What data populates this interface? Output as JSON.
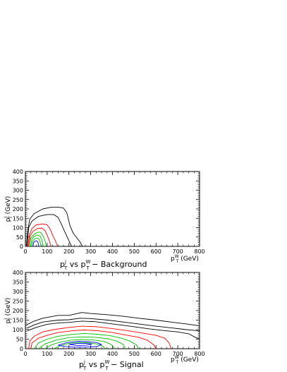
{
  "chart_data": [
    {
      "type": "contour",
      "title": "p_T^j vs p_T^W − Background",
      "title_parts": {
        "a": "p",
        "a_sub": "T",
        "a_sup": "j",
        "mid": " vs p",
        "b_sub": "T",
        "b_sup": "W",
        "tail": " − Background"
      },
      "xlabel_parts": {
        "main": "p",
        "sub": "T",
        "sup": "W",
        "unit": " (GeV)"
      },
      "ylabel_parts": {
        "main": "p",
        "sub": "T",
        "sup": "j",
        "unit": " (GeV)"
      },
      "xlim": [
        0,
        800
      ],
      "ylim": [
        0,
        400
      ],
      "xticks": [
        "0",
        "100",
        "200",
        "300",
        "400",
        "500",
        "600",
        "700",
        "800"
      ],
      "yticks": [
        "0",
        "50",
        "100",
        "150",
        "200",
        "250",
        "300",
        "350",
        "400"
      ],
      "contours": [
        {
          "color": "#000000",
          "points": [
            [
              5,
              0
            ],
            [
              10,
              80
            ],
            [
              20,
              145
            ],
            [
              40,
              175
            ],
            [
              80,
              200
            ],
            [
              120,
              210
            ],
            [
              150,
              210
            ],
            [
              175,
              205
            ],
            [
              190,
              180
            ],
            [
              205,
              110
            ],
            [
              220,
              70
            ],
            [
              250,
              25
            ],
            [
              262,
              0
            ]
          ]
        },
        {
          "color": "#000000",
          "points": [
            [
              8,
              0
            ],
            [
              15,
              100
            ],
            [
              30,
              135
            ],
            [
              60,
              160
            ],
            [
              100,
              170
            ],
            [
              130,
              170
            ],
            [
              150,
              155
            ],
            [
              165,
              120
            ],
            [
              180,
              80
            ],
            [
              200,
              30
            ],
            [
              212,
              0
            ]
          ]
        },
        {
          "color": "#ff0000",
          "points": [
            [
              12,
              0
            ],
            [
              18,
              60
            ],
            [
              30,
              95
            ],
            [
              50,
              115
            ],
            [
              80,
              120
            ],
            [
              100,
              115
            ],
            [
              115,
              90
            ],
            [
              125,
              60
            ],
            [
              140,
              25
            ],
            [
              148,
              0
            ]
          ]
        },
        {
          "color": "#ff0000",
          "points": [
            [
              15,
              0
            ],
            [
              22,
              55
            ],
            [
              35,
              80
            ],
            [
              55,
              95
            ],
            [
              75,
              98
            ],
            [
              90,
              85
            ],
            [
              100,
              60
            ],
            [
              110,
              30
            ],
            [
              118,
              0
            ]
          ]
        },
        {
          "color": "#00c000",
          "points": [
            [
              20,
              0
            ],
            [
              25,
              45
            ],
            [
              40,
              65
            ],
            [
              55,
              75
            ],
            [
              70,
              75
            ],
            [
              82,
              55
            ],
            [
              90,
              30
            ],
            [
              96,
              0
            ]
          ]
        },
        {
          "color": "#00c000",
          "points": [
            [
              25,
              0
            ],
            [
              30,
              40
            ],
            [
              42,
              55
            ],
            [
              55,
              60
            ],
            [
              68,
              55
            ],
            [
              75,
              35
            ],
            [
              82,
              0
            ]
          ]
        },
        {
          "color": "#00c000",
          "points": [
            [
              30,
              0
            ],
            [
              35,
              30
            ],
            [
              45,
              42
            ],
            [
              55,
              45
            ],
            [
              63,
              38
            ],
            [
              68,
              20
            ],
            [
              72,
              0
            ]
          ]
        },
        {
          "color": "#0000ff",
          "points": [
            [
              35,
              0
            ],
            [
              38,
              20
            ],
            [
              45,
              28
            ],
            [
              53,
              30
            ],
            [
              58,
              20
            ],
            [
              62,
              0
            ]
          ]
        }
      ]
    },
    {
      "type": "contour",
      "title": "p_T^j vs p_T^W − Signal",
      "title_parts": {
        "a": "p",
        "a_sub": "T",
        "a_sup": "j",
        "mid": " vs p",
        "b_sub": "T",
        "b_sup": "W",
        "tail": " − Signal"
      },
      "xlabel_parts": {
        "main": "p",
        "sub": "T",
        "sup": "W",
        "unit": " (GeV)"
      },
      "ylabel_parts": {
        "main": "p",
        "sub": "T",
        "sup": "j",
        "unit": " (GeV)"
      },
      "xlim": [
        0,
        800
      ],
      "ylim": [
        0,
        400
      ],
      "xticks": [
        "0",
        "100",
        "200",
        "300",
        "400",
        "500",
        "600",
        "700",
        "800"
      ],
      "yticks": [
        "0",
        "50",
        "100",
        "150",
        "200",
        "250",
        "300",
        "350",
        "400"
      ],
      "contours": [
        {
          "color": "#000000",
          "points": [
            [
              5,
              125
            ],
            [
              40,
              145
            ],
            [
              80,
              160
            ],
            [
              150,
              175
            ],
            [
              200,
              175
            ],
            [
              260,
              190
            ],
            [
              300,
              185
            ],
            [
              380,
              178
            ],
            [
              450,
              170
            ],
            [
              520,
              160
            ],
            [
              600,
              150
            ],
            [
              680,
              138
            ],
            [
              740,
              130
            ],
            [
              790,
              122
            ],
            [
              800,
              118
            ]
          ]
        },
        {
          "color": "#000000",
          "points": [
            [
              8,
              108
            ],
            [
              40,
              125
            ],
            [
              80,
              140
            ],
            [
              150,
              150
            ],
            [
              200,
              152
            ],
            [
              250,
              160
            ],
            [
              300,
              158
            ],
            [
              380,
              150
            ],
            [
              450,
              140
            ],
            [
              520,
              130
            ],
            [
              600,
              118
            ],
            [
              680,
              108
            ],
            [
              740,
              100
            ],
            [
              790,
              95
            ],
            [
              800,
              92
            ]
          ]
        },
        {
          "color": "#000000",
          "points": [
            [
              10,
              95
            ],
            [
              50,
              112
            ],
            [
              100,
              128
            ],
            [
              150,
              135
            ],
            [
              200,
              138
            ],
            [
              260,
              145
            ],
            [
              320,
              142
            ],
            [
              400,
              130
            ],
            [
              480,
              118
            ],
            [
              560,
              105
            ],
            [
              640,
              95
            ],
            [
              700,
              88
            ],
            [
              750,
              78
            ],
            [
              780,
              60
            ],
            [
              800,
              50
            ]
          ]
        },
        {
          "color": "#ff0000",
          "points": [
            [
              15,
              0
            ],
            [
              20,
              40
            ],
            [
              40,
              65
            ],
            [
              80,
              88
            ],
            [
              130,
              100
            ],
            [
              200,
              112
            ],
            [
              260,
              118
            ],
            [
              330,
              115
            ],
            [
              400,
              105
            ],
            [
              470,
              95
            ],
            [
              540,
              82
            ],
            [
              600,
              70
            ],
            [
              640,
              55
            ],
            [
              660,
              30
            ],
            [
              670,
              0
            ]
          ]
        },
        {
          "color": "#ff0000",
          "points": [
            [
              25,
              0
            ],
            [
              30,
              30
            ],
            [
              60,
              55
            ],
            [
              100,
              70
            ],
            [
              150,
              85
            ],
            [
              220,
              95
            ],
            [
              270,
              98
            ],
            [
              330,
              95
            ],
            [
              400,
              85
            ],
            [
              460,
              72
            ],
            [
              520,
              60
            ],
            [
              560,
              45
            ],
            [
              590,
              20
            ],
            [
              600,
              0
            ]
          ]
        },
        {
          "color": "#00c000",
          "points": [
            [
              40,
              0
            ],
            [
              60,
              30
            ],
            [
              100,
              50
            ],
            [
              150,
              65
            ],
            [
              210,
              75
            ],
            [
              270,
              80
            ],
            [
              330,
              76
            ],
            [
              390,
              68
            ],
            [
              440,
              55
            ],
            [
              480,
              40
            ],
            [
              510,
              20
            ],
            [
              520,
              0
            ]
          ]
        },
        {
          "color": "#00c000",
          "points": [
            [
              60,
              0
            ],
            [
              90,
              25
            ],
            [
              140,
              45
            ],
            [
              200,
              58
            ],
            [
              260,
              62
            ],
            [
              320,
              60
            ],
            [
              380,
              52
            ],
            [
              420,
              40
            ],
            [
              450,
              22
            ],
            [
              460,
              0
            ]
          ]
        },
        {
          "color": "#00c000",
          "points": [
            [
              90,
              0
            ],
            [
              120,
              20
            ],
            [
              160,
              35
            ],
            [
              210,
              45
            ],
            [
              260,
              48
            ],
            [
              310,
              46
            ],
            [
              360,
              38
            ],
            [
              390,
              25
            ],
            [
              405,
              10
            ],
            [
              410,
              0
            ]
          ]
        },
        {
          "color": "#00c000",
          "points": [
            [
              130,
              0
            ],
            [
              160,
              15
            ],
            [
              200,
              28
            ],
            [
              250,
              33
            ],
            [
              300,
              30
            ],
            [
              340,
              22
            ],
            [
              360,
              10
            ],
            [
              365,
              0
            ]
          ]
        },
        {
          "color": "#0000ff",
          "points": [
            [
              150,
              18
            ],
            [
              190,
              32
            ],
            [
              240,
              38
            ],
            [
              290,
              37
            ],
            [
              330,
              32
            ],
            [
              350,
              22
            ],
            [
              330,
              12
            ],
            [
              280,
              8
            ],
            [
              220,
              8
            ],
            [
              180,
              12
            ],
            [
              150,
              18
            ]
          ]
        },
        {
          "color": "#0000ff",
          "points": [
            [
              200,
              22
            ],
            [
              240,
              28
            ],
            [
              280,
              28
            ],
            [
              305,
              24
            ],
            [
              280,
              18
            ],
            [
              240,
              17
            ],
            [
              200,
              22
            ]
          ]
        }
      ]
    }
  ]
}
